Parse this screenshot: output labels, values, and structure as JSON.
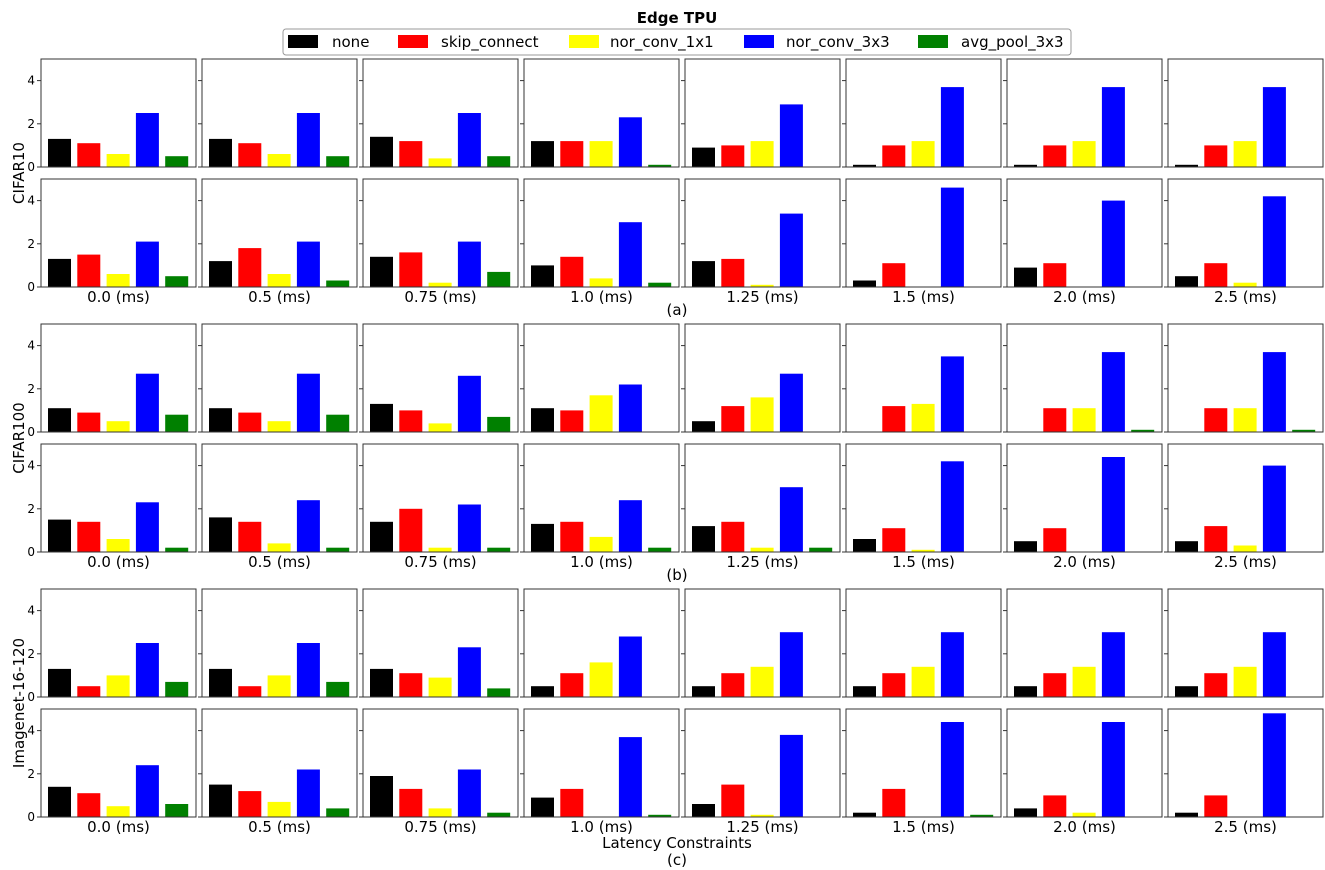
{
  "title": "Edge TPU",
  "legend": [
    "none",
    "skip_connect",
    "nor_conv_1x1",
    "nor_conv_3x3",
    "avg_pool_3x3"
  ],
  "colors": {
    "none": "#000000",
    "skip_connect": "#ff0000",
    "nor_conv_1x1": "#ffff00",
    "nor_conv_3x3": "#0000ff",
    "avg_pool_3x3": "#008000"
  },
  "xlabels": [
    "0.0 (ms)",
    "0.5 (ms)",
    "0.75 (ms)",
    "1.0 (ms)",
    "1.25 (ms)",
    "1.5 (ms)",
    "2.0 (ms)",
    "2.5 (ms)"
  ],
  "captions": [
    "(a)",
    "(b)",
    "(c)"
  ],
  "xaxis_title": "Latency Constraints",
  "chart_data": {
    "type": "bar",
    "ylim": [
      0,
      5
    ],
    "yticks": [
      0,
      2,
      4
    ],
    "categories": [
      "none",
      "skip_connect",
      "nor_conv_1x1",
      "nor_conv_3x3",
      "avg_pool_3x3"
    ],
    "latency_constraints": [
      "0.0 (ms)",
      "0.5 (ms)",
      "0.75 (ms)",
      "1.0 (ms)",
      "1.25 (ms)",
      "1.5 (ms)",
      "2.0 (ms)",
      "2.5 (ms)"
    ],
    "groups": [
      {
        "dataset": "CIFAR10",
        "caption": "(a)",
        "rows": [
          [
            [
              1.3,
              1.1,
              0.6,
              2.5,
              0.5
            ],
            [
              1.3,
              1.1,
              0.6,
              2.5,
              0.5
            ],
            [
              1.4,
              1.2,
              0.4,
              2.5,
              0.5
            ],
            [
              1.2,
              1.2,
              1.2,
              2.3,
              0.1
            ],
            [
              0.9,
              1.0,
              1.2,
              2.9,
              0
            ],
            [
              0.1,
              1.0,
              1.2,
              3.7,
              0
            ],
            [
              0.1,
              1.0,
              1.2,
              3.7,
              0
            ],
            [
              0.1,
              1.0,
              1.2,
              3.7,
              0
            ]
          ],
          [
            [
              1.3,
              1.5,
              0.6,
              2.1,
              0.5
            ],
            [
              1.2,
              1.8,
              0.6,
              2.1,
              0.3
            ],
            [
              1.4,
              1.6,
              0.2,
              2.1,
              0.7
            ],
            [
              1.0,
              1.4,
              0.4,
              3.0,
              0.2
            ],
            [
              1.2,
              1.3,
              0.1,
              3.4,
              0
            ],
            [
              0.3,
              1.1,
              0,
              4.6,
              0
            ],
            [
              0.9,
              1.1,
              0,
              4.0,
              0
            ],
            [
              0.5,
              1.1,
              0.2,
              4.2,
              0
            ]
          ]
        ]
      },
      {
        "dataset": "CIFAR100",
        "caption": "(b)",
        "rows": [
          [
            [
              1.1,
              0.9,
              0.5,
              2.7,
              0.8
            ],
            [
              1.1,
              0.9,
              0.5,
              2.7,
              0.8
            ],
            [
              1.3,
              1.0,
              0.4,
              2.6,
              0.7
            ],
            [
              1.1,
              1.0,
              1.7,
              2.2,
              0
            ],
            [
              0.5,
              1.2,
              1.6,
              2.7,
              0
            ],
            [
              0,
              1.2,
              1.3,
              3.5,
              0
            ],
            [
              0,
              1.1,
              1.1,
              3.7,
              0.1
            ],
            [
              0,
              1.1,
              1.1,
              3.7,
              0.1
            ]
          ],
          [
            [
              1.5,
              1.4,
              0.6,
              2.3,
              0.2
            ],
            [
              1.6,
              1.4,
              0.4,
              2.4,
              0.2
            ],
            [
              1.4,
              2.0,
              0.2,
              2.2,
              0.2
            ],
            [
              1.3,
              1.4,
              0.7,
              2.4,
              0.2
            ],
            [
              1.2,
              1.4,
              0.2,
              3.0,
              0.2
            ],
            [
              0.6,
              1.1,
              0.1,
              4.2,
              0
            ],
            [
              0.5,
              1.1,
              0,
              4.4,
              0
            ],
            [
              0.5,
              1.2,
              0.3,
              4.0,
              0
            ]
          ]
        ]
      },
      {
        "dataset": "Imagenet-16-120",
        "caption": "(c)",
        "rows": [
          [
            [
              1.3,
              0.5,
              1.0,
              2.5,
              0.7
            ],
            [
              1.3,
              0.5,
              1.0,
              2.5,
              0.7
            ],
            [
              1.3,
              1.1,
              0.9,
              2.3,
              0.4
            ],
            [
              0.5,
              1.1,
              1.6,
              2.8,
              0
            ],
            [
              0.5,
              1.1,
              1.4,
              3.0,
              0
            ],
            [
              0.5,
              1.1,
              1.4,
              3.0,
              0
            ],
            [
              0.5,
              1.1,
              1.4,
              3.0,
              0
            ],
            [
              0.5,
              1.1,
              1.4,
              3.0,
              0
            ]
          ],
          [
            [
              1.4,
              1.1,
              0.5,
              2.4,
              0.6
            ],
            [
              1.5,
              1.2,
              0.7,
              2.2,
              0.4
            ],
            [
              1.9,
              1.3,
              0.4,
              2.2,
              0.2
            ],
            [
              0.9,
              1.3,
              0,
              3.7,
              0.1
            ],
            [
              0.6,
              1.5,
              0.1,
              3.8,
              0
            ],
            [
              0.2,
              1.3,
              0,
              4.4,
              0.1
            ],
            [
              0.4,
              1.0,
              0.2,
              4.4,
              0
            ],
            [
              0.2,
              1.0,
              0,
              4.8,
              0
            ]
          ]
        ]
      }
    ]
  }
}
